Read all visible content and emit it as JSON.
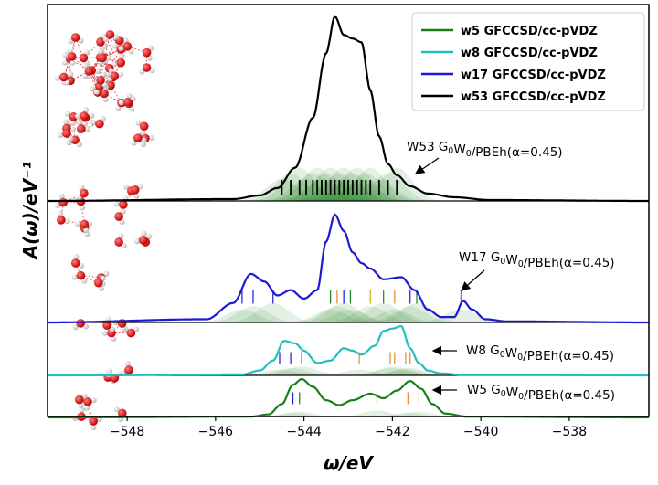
{
  "chart_data": {
    "type": "line",
    "xlabel": "ω/eV",
    "ylabel": "A(ω)/eV⁻¹",
    "xlim": [
      -549.8,
      -536.2
    ],
    "x_ticks": [
      -548,
      -546,
      -544,
      -542,
      -540,
      -538
    ],
    "x_tick_labels": [
      "−548",
      "−546",
      "−544",
      "−542",
      "−540",
      "−538"
    ],
    "grid": false,
    "legend_position": "top-right",
    "legend": [
      {
        "label": "w5 GFCCSD/cc-pVDZ",
        "color": "#1a7f1a"
      },
      {
        "label": "w8 GFCCSD/cc-pVDZ",
        "color": "#20c0c0"
      },
      {
        "label": "w17 GFCCSD/cc-pVDZ",
        "color": "#1a1ad6"
      },
      {
        "label": "w53 GFCCSD/cc-pVDZ",
        "color": "#000000"
      }
    ],
    "panels": [
      {
        "name": "w53",
        "color": "#000000",
        "annotation": {
          "base": "W53 G",
          "sub1": "0",
          "mid": "W",
          "sub2": "0",
          "tail": "/PBEh(α=0.45)"
        },
        "spectrum": {
          "x": [
            -549.8,
            -545.6,
            -545.0,
            -544.6,
            -544.2,
            -543.8,
            -543.5,
            -543.3,
            -543.1,
            -542.9,
            -542.7,
            -542.5,
            -542.3,
            -542.1,
            -541.9,
            -541.6,
            -541.2,
            -540.6,
            -539.8,
            -536.2
          ],
          "y": [
            0.0,
            0.01,
            0.03,
            0.07,
            0.18,
            0.45,
            0.8,
            1.0,
            0.9,
            0.88,
            0.86,
            0.6,
            0.35,
            0.2,
            0.14,
            0.08,
            0.04,
            0.02,
            0.005,
            0.0
          ]
        },
        "sticks": [
          -544.5,
          -544.3,
          -544.1,
          -543.95,
          -543.8,
          -543.7,
          -543.6,
          -543.5,
          -543.4,
          -543.3,
          -543.2,
          -543.1,
          -543.0,
          -542.9,
          -542.8,
          -542.7,
          -542.6,
          -542.5,
          -542.3,
          -542.1,
          -541.9
        ],
        "stick_colors": [
          "#000000"
        ]
      },
      {
        "name": "w17",
        "color": "#1a1ad6",
        "annotation": {
          "base": "W17 G",
          "sub1": "0",
          "mid": "W",
          "sub2": "0",
          "tail": "/PBEh(α=0.45)"
        },
        "spectrum": {
          "x": [
            -549.8,
            -546.2,
            -545.6,
            -545.2,
            -544.9,
            -544.6,
            -544.3,
            -544.0,
            -543.7,
            -543.5,
            -543.3,
            -543.1,
            -542.9,
            -542.7,
            -542.5,
            -542.2,
            -541.8,
            -541.5,
            -541.2,
            -540.9,
            -540.6,
            -540.4,
            -540.2,
            -539.9,
            -539.4,
            -536.2
          ],
          "y": [
            0.0,
            0.03,
            0.18,
            0.45,
            0.38,
            0.25,
            0.3,
            0.22,
            0.3,
            0.75,
            1.0,
            0.85,
            0.65,
            0.55,
            0.5,
            0.4,
            0.42,
            0.3,
            0.12,
            0.05,
            0.05,
            0.2,
            0.12,
            0.03,
            0.01,
            0.0
          ]
        },
        "sticks": [
          -545.4,
          -545.15,
          -544.7,
          -543.4,
          -543.25,
          -543.1,
          -542.95,
          -542.5,
          -542.2,
          -541.95,
          -541.6,
          -541.45,
          -540.45
        ],
        "stick_colors": [
          "#1a1ad6",
          "#1a1ad6",
          "#1a1ad6",
          "#1a7f1a",
          "#e08a20",
          "#1a1ad6",
          "#1a7f1a",
          "#c8b400",
          "#1a7f1a",
          "#e08a20",
          "#1a1ad6",
          "#1a7f1a",
          "#9b59d0"
        ]
      },
      {
        "name": "w8",
        "color": "#20c0c0",
        "annotation": {
          "base": "W8 G",
          "sub1": "0",
          "mid": "W",
          "sub2": "0",
          "tail": "/PBEh(α=0.45)"
        },
        "spectrum": {
          "x": [
            -549.8,
            -545.4,
            -545.0,
            -544.7,
            -544.45,
            -544.2,
            -544.0,
            -543.7,
            -543.4,
            -543.1,
            -542.9,
            -542.7,
            -542.4,
            -542.2,
            -542.0,
            -541.8,
            -541.6,
            -541.4,
            -541.2,
            -540.9,
            -540.4,
            -536.2
          ],
          "y": [
            0.0,
            0.02,
            0.1,
            0.3,
            0.7,
            0.65,
            0.5,
            0.25,
            0.3,
            0.55,
            0.5,
            0.42,
            0.6,
            0.9,
            0.95,
            1.0,
            0.55,
            0.25,
            0.1,
            0.04,
            0.01,
            0.0
          ]
        },
        "sticks": [
          -544.55,
          -544.3,
          -544.05,
          -542.75,
          -542.05,
          -541.95,
          -541.7,
          -541.6
        ],
        "stick_colors": [
          "#1a1ad6",
          "#1a1ad6",
          "#1a1ad6",
          "#e08a20",
          "#e08a20",
          "#e08a20",
          "#e08a20",
          "#e08a20"
        ]
      },
      {
        "name": "w5",
        "color": "#1a7f1a",
        "annotation": {
          "base": "W5 G",
          "sub1": "0",
          "mid": "W",
          "sub2": "0",
          "tail": "/PBEh(α=0.45)"
        },
        "spectrum": {
          "x": [
            -549.8,
            -545.2,
            -544.8,
            -544.5,
            -544.25,
            -544.05,
            -543.8,
            -543.5,
            -543.2,
            -542.9,
            -542.5,
            -542.2,
            -541.9,
            -541.6,
            -541.35,
            -541.1,
            -540.8,
            -540.3,
            -536.2
          ],
          "y": [
            0.0,
            0.02,
            0.08,
            0.35,
            0.85,
            1.0,
            0.8,
            0.45,
            0.32,
            0.45,
            0.62,
            0.5,
            0.7,
            0.95,
            0.75,
            0.35,
            0.1,
            0.02,
            0.0
          ]
        },
        "sticks": [
          -544.25,
          -544.1,
          -542.35,
          -541.65,
          -541.4
        ],
        "stick_colors": [
          "#1a1ad6",
          "#1a7f1a",
          "#c8b400",
          "#e08a20",
          "#e08a20"
        ]
      }
    ]
  }
}
